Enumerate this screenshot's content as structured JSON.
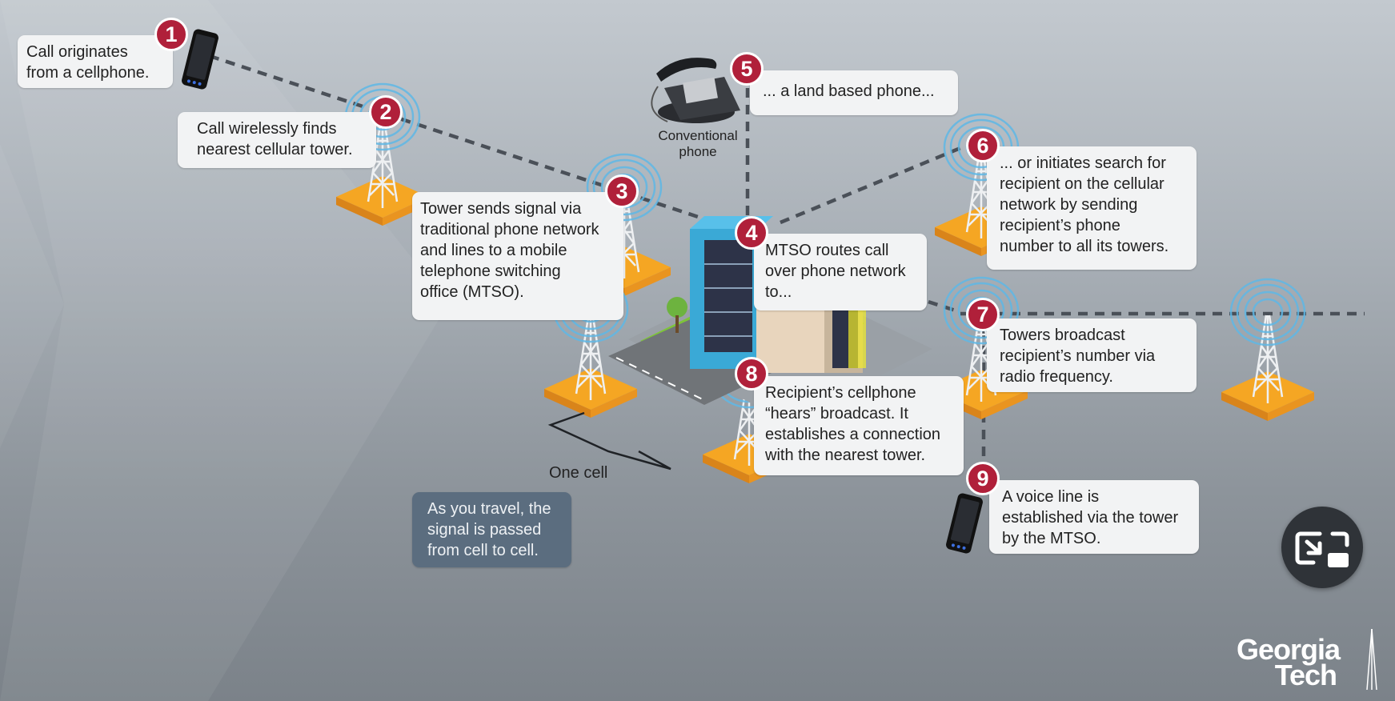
{
  "steps": [
    {
      "num": "1",
      "text": "Call originates\nfrom a cellphone."
    },
    {
      "num": "2",
      "text": "Call wirelessly finds\nnearest cellular tower."
    },
    {
      "num": "3",
      "text": "Tower sends signal via\ntraditional phone network\nand lines to a mobile\ntelephone switching\noffice (MTSO)."
    },
    {
      "num": "4",
      "text": "MTSO routes call\nover phone network\nto..."
    },
    {
      "num": "5",
      "text": "... a land based phone..."
    },
    {
      "num": "6",
      "text": "... or initiates search for\nrecipient on the cellular\nnetwork by sending\nrecipient’s phone\nnumber to all its towers."
    },
    {
      "num": "7",
      "text": "Towers broadcast\nrecipient’s number via\nradio frequency."
    },
    {
      "num": "8",
      "text": "Recipient’s cellphone\n“hears” broadcast. It\nestablishes a connection\nwith the nearest tower."
    },
    {
      "num": "9",
      "text": "A voice line is\nestablished via the tower\nby the MTSO."
    }
  ],
  "labels": {
    "conventional_phone": "Conventional\nphone",
    "one_cell": "One cell",
    "travel_note": "As you travel, the\nsignal is passed\nfrom cell to cell."
  },
  "logo": {
    "line1": "Georgia",
    "line2": "Tech"
  },
  "colors": {
    "badge": "#b0203a",
    "tower_base": "#f5a623",
    "building_blue": "#3aa9d6",
    "box": "#f2f3f4",
    "note_box": "#5b6d7f"
  },
  "icons": [
    "cellphone-icon",
    "conventional-phone-icon",
    "cell-tower-icon",
    "mtso-building-icon",
    "exit-fullscreen-icon"
  ]
}
